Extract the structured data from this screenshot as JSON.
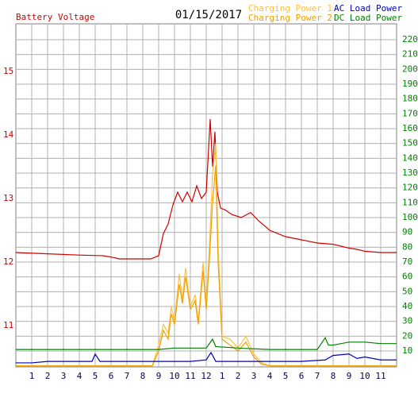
{
  "chart_data": {
    "type": "line",
    "title": "01/15/2017",
    "xlim": [
      0,
      24
    ],
    "xticks": [
      1,
      2,
      3,
      4,
      5,
      6,
      7,
      8,
      9,
      10,
      11,
      12,
      {
        "value": 13,
        "label": "1"
      },
      {
        "value": 14,
        "label": "2"
      },
      {
        "value": 15,
        "label": "3"
      },
      {
        "value": 16,
        "label": "4"
      },
      {
        "value": 17,
        "label": "5"
      },
      {
        "value": 18,
        "label": "6"
      },
      {
        "value": 19,
        "label": "7"
      },
      {
        "value": 20,
        "label": "8"
      },
      {
        "value": 21,
        "label": "9"
      },
      {
        "value": 22,
        "label": "10"
      },
      {
        "value": 23,
        "label": "11"
      }
    ],
    "ylim": [
      10.35,
      15.75
    ],
    "yticks": [
      11,
      12,
      13,
      14,
      15
    ],
    "y2lim": [
      -0.7,
      230.7
    ],
    "y2ticks": [
      10,
      20,
      30,
      40,
      50,
      60,
      70,
      80,
      90,
      100,
      110,
      120,
      130,
      140,
      150,
      160,
      170,
      180,
      190,
      200,
      210,
      220
    ],
    "grid": true,
    "series": [
      {
        "name": "Battery Voltage",
        "color": "#d00000",
        "axis": "y",
        "x": [
          0,
          2,
          4,
          5.5,
          6.2,
          6.5,
          8.5,
          9,
          9.3,
          9.6,
          9.9,
          10.2,
          10.5,
          10.8,
          11.1,
          11.4,
          11.7,
          12,
          12.25,
          12.4,
          12.55,
          12.7,
          12.9,
          13.2,
          13.6,
          14.2,
          14.8,
          15.3,
          16,
          17,
          18,
          19,
          20,
          20.5,
          21,
          21.5,
          22,
          23,
          24
        ],
        "values": [
          12.15,
          12.13,
          12.11,
          12.1,
          12.07,
          12.05,
          12.05,
          12.1,
          12.45,
          12.6,
          12.9,
          13.1,
          12.95,
          13.1,
          12.95,
          13.2,
          13.0,
          13.1,
          14.25,
          13.5,
          14.05,
          13.1,
          12.85,
          12.82,
          12.75,
          12.7,
          12.78,
          12.65,
          12.5,
          12.4,
          12.35,
          12.3,
          12.28,
          12.25,
          12.22,
          12.2,
          12.17,
          12.15,
          12.15
        ]
      },
      {
        "name": "Charging Power 1",
        "color": "#ffc040",
        "axis": "y2",
        "x": [
          0,
          8.6,
          9,
          9.3,
          9.6,
          9.8,
          10,
          10.3,
          10.5,
          10.7,
          11,
          11.3,
          11.5,
          11.8,
          12,
          12.2,
          12.4,
          12.6,
          12.75,
          13,
          13.5,
          14,
          14.5,
          15,
          15.5,
          16,
          24
        ],
        "values": [
          0,
          0,
          14,
          28,
          22,
          40,
          30,
          62,
          45,
          66,
          40,
          48,
          30,
          70,
          40,
          80,
          130,
          150,
          80,
          20,
          18,
          12,
          20,
          8,
          2,
          0,
          0
        ]
      },
      {
        "name": "Charging Power 2",
        "color": "#f0a000",
        "axis": "y2",
        "x": [
          0,
          8.6,
          9,
          9.3,
          9.6,
          9.8,
          10,
          10.3,
          10.5,
          10.7,
          11,
          11.3,
          11.5,
          11.8,
          12,
          12.2,
          12.4,
          12.6,
          12.75,
          13,
          13.5,
          14,
          14.5,
          15,
          15.5,
          16,
          24
        ],
        "values": [
          0,
          0,
          10,
          24,
          18,
          35,
          28,
          55,
          42,
          60,
          38,
          44,
          28,
          64,
          38,
          72,
          110,
          135,
          70,
          18,
          14,
          10,
          16,
          6,
          1,
          0,
          0
        ]
      },
      {
        "name": "AC Load Power",
        "color": "#0000c0",
        "axis": "y2",
        "x": [
          0,
          1,
          2,
          4,
          4.8,
          5,
          5.3,
          6,
          7,
          8,
          9,
          10,
          11,
          12,
          12.3,
          12.6,
          13,
          14,
          16,
          18,
          19.5,
          20,
          21,
          21.5,
          22,
          23,
          24
        ],
        "values": [
          2,
          2,
          3,
          3,
          3,
          8,
          3,
          3,
          3,
          3,
          3,
          3,
          3,
          4,
          9,
          3,
          3,
          3,
          3,
          3,
          4,
          7,
          8,
          5,
          6,
          4,
          4
        ]
      },
      {
        "name": "DC Load Power",
        "color": "#008000",
        "axis": "y2",
        "x": [
          0,
          8,
          9,
          10,
          12,
          12.4,
          12.6,
          14,
          16,
          18,
          19,
          19.5,
          19.7,
          20,
          21,
          22,
          23,
          24
        ],
        "values": [
          11,
          11,
          11,
          12,
          12,
          18,
          13,
          12,
          11,
          11,
          11,
          19,
          14,
          14,
          16,
          16,
          15,
          15
        ]
      }
    ]
  }
}
